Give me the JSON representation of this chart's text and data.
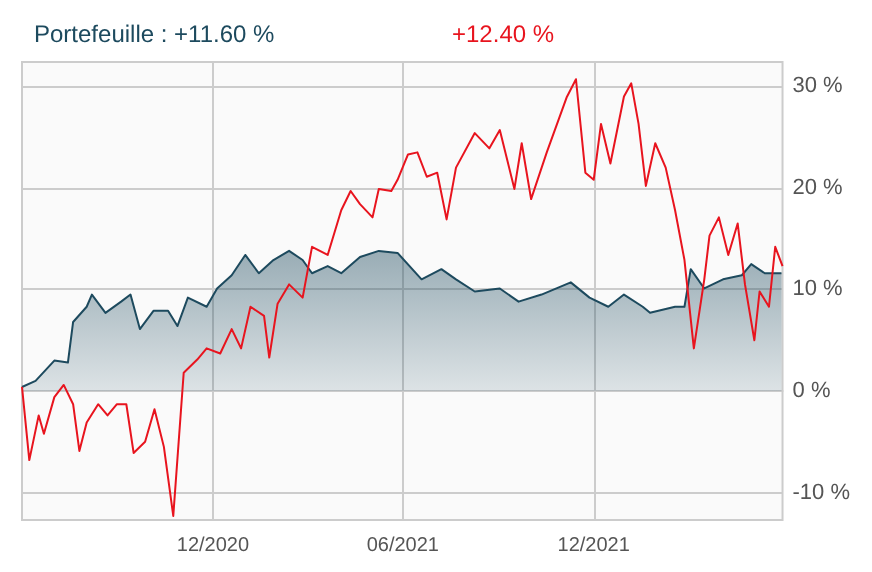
{
  "chart_data": {
    "type": "line",
    "legend": "top left",
    "grid": true,
    "annotations": [
      "+12.40 %"
    ],
    "xlim": [
      "2020-06-01",
      "2022-05-31"
    ],
    "xticks": [
      {
        "value": "2020-12-01",
        "label": "12/2020"
      },
      {
        "value": "2021-06-01",
        "label": "06/2021"
      },
      {
        "value": "2021-12-01",
        "label": "12/2021"
      }
    ],
    "ylim": [
      -12.7,
      32.4
    ],
    "yticks": [
      {
        "value": -10,
        "label": "-10 %"
      },
      {
        "value": 0,
        "label": "0 %"
      },
      {
        "value": 10,
        "label": "10 %"
      },
      {
        "value": 20,
        "label": "20 %"
      },
      {
        "value": 30,
        "label": "30 %"
      }
    ],
    "series": [
      {
        "name": "Portefeuille : +11.60 %",
        "type": "area",
        "color": "#1d4a5e",
        "x": [
          "2020-06-01",
          "2020-06-14",
          "2020-07-02",
          "2020-07-15",
          "2020-07-20",
          "2020-08-02",
          "2020-08-07",
          "2020-08-20",
          "2020-09-04",
          "2020-09-13",
          "2020-09-22",
          "2020-10-05",
          "2020-10-19",
          "2020-10-28",
          "2020-11-07",
          "2020-11-25",
          "2020-12-05",
          "2020-12-19",
          "2021-01-01",
          "2021-01-14",
          "2021-01-28",
          "2021-02-12",
          "2021-02-25",
          "2021-03-06",
          "2021-03-21",
          "2021-04-03",
          "2021-04-21",
          "2021-05-09",
          "2021-05-27",
          "2021-06-19",
          "2021-07-08",
          "2021-07-22",
          "2021-08-09",
          "2021-09-02",
          "2021-09-20",
          "2021-10-12",
          "2021-11-09",
          "2021-11-27",
          "2021-12-15",
          "2021-12-30",
          "2022-01-17",
          "2022-01-24",
          "2022-02-17",
          "2022-02-26",
          "2022-03-04",
          "2022-03-17",
          "2022-04-04",
          "2022-04-22",
          "2022-05-01",
          "2022-05-14",
          "2022-05-30"
        ],
        "values": [
          0.4,
          1,
          3,
          2.8,
          6.8,
          8.3,
          9.5,
          7.7,
          8.8,
          9.5,
          6.1,
          7.9,
          7.9,
          6.4,
          9.2,
          8.3,
          10.1,
          11.4,
          13.4,
          11.6,
          12.9,
          13.8,
          12.9,
          11.6,
          12.3,
          11.6,
          13.2,
          13.8,
          13.6,
          11,
          12,
          11,
          9.8,
          10.1,
          8.8,
          9.5,
          10.7,
          9.2,
          8.3,
          9.5,
          8.3,
          7.7,
          8.3,
          8.3,
          12,
          10.1,
          11,
          11.4,
          12.5,
          11.6,
          11.6
        ]
      },
      {
        "color": "#e8141e",
        "x": [
          "2020-06-01",
          "2020-06-08",
          "2020-06-17",
          "2020-06-22",
          "2020-07-02",
          "2020-07-11",
          "2020-07-20",
          "2020-07-26",
          "2020-08-02",
          "2020-08-13",
          "2020-08-22",
          "2020-08-31",
          "2020-09-09",
          "2020-09-16",
          "2020-09-27",
          "2020-10-06",
          "2020-10-15",
          "2020-10-24",
          "2020-11-03",
          "2020-11-16",
          "2020-11-25",
          "2020-12-08",
          "2020-12-19",
          "2020-12-28",
          "2021-01-06",
          "2021-01-19",
          "2021-01-24",
          "2021-02-01",
          "2021-02-12",
          "2021-02-25",
          "2021-03-06",
          "2021-03-21",
          "2021-04-03",
          "2021-04-12",
          "2021-04-21",
          "2021-05-03",
          "2021-05-09",
          "2021-05-21",
          "2021-05-27",
          "2021-06-06",
          "2021-06-15",
          "2021-06-24",
          "2021-07-04",
          "2021-07-13",
          "2021-07-22",
          "2021-08-09",
          "2021-08-23",
          "2021-09-02",
          "2021-09-16",
          "2021-09-23",
          "2021-10-02",
          "2021-10-17",
          "2021-11-05",
          "2021-11-14",
          "2021-11-23",
          "2021-12-01",
          "2021-12-08",
          "2021-12-17",
          "2021-12-30",
          "2022-01-06",
          "2022-01-13",
          "2022-01-20",
          "2022-01-29",
          "2022-02-08",
          "2022-02-17",
          "2022-02-26",
          "2022-03-07",
          "2022-03-17",
          "2022-03-22",
          "2022-03-31",
          "2022-04-09",
          "2022-04-18",
          "2022-04-25",
          "2022-05-04",
          "2022-05-09",
          "2022-05-18",
          "2022-05-24",
          "2022-05-31"
        ],
        "values": [
          0.4,
          -6.8,
          -2.4,
          -4.2,
          -0.6,
          0.6,
          -1.3,
          -5.9,
          -3.1,
          -1.3,
          -2.4,
          -1.3,
          -1.3,
          -6.1,
          -5,
          -1.8,
          -5.5,
          -12.3,
          1.8,
          3.1,
          4.2,
          3.7,
          6.1,
          4.2,
          8.3,
          7.4,
          3.3,
          8.6,
          10.5,
          9.2,
          14.2,
          13.4,
          17.8,
          19.7,
          18.4,
          17.1,
          19.9,
          19.7,
          20.8,
          23.3,
          23.5,
          21.1,
          21.5,
          16.9,
          22,
          25.4,
          23.9,
          25.7,
          19.9,
          24.4,
          18.9,
          23.5,
          28.9,
          30.7,
          21.5,
          20.8,
          26.3,
          22.4,
          29,
          30.3,
          26.3,
          20.2,
          24.4,
          22,
          17.8,
          12.9,
          4.2,
          11,
          15.3,
          17.1,
          13.4,
          16.5,
          10.5,
          5,
          9.8,
          8.3,
          14.2,
          12.3
        ]
      }
    ]
  }
}
